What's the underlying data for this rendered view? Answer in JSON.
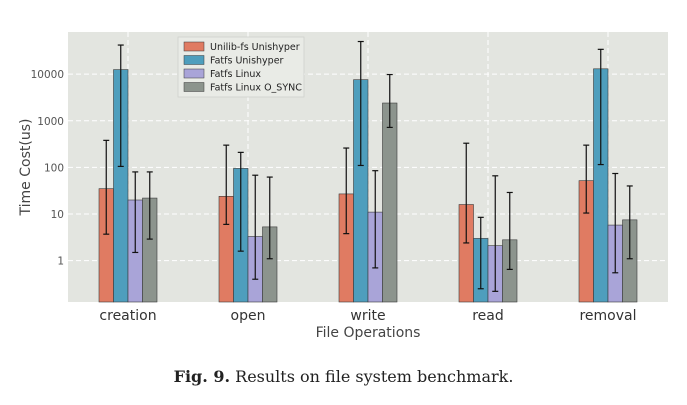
{
  "caption": {
    "label": "Fig. 9.",
    "text": "Results on file system benchmark."
  },
  "chart_data": {
    "type": "bar",
    "title": "",
    "xlabel": "File Operations",
    "ylabel": "Time Cost(us)",
    "yscale": "log",
    "ylim": [
      0.13,
      80000
    ],
    "ytick_values": [
      1,
      10,
      100,
      1000,
      10000
    ],
    "ytick_labels": [
      "1",
      "10",
      "100",
      "1000",
      "10000"
    ],
    "grid": true,
    "legend_position": "top-left",
    "categories": [
      "creation",
      "open",
      "write",
      "read",
      "removal"
    ],
    "series": [
      {
        "name": "Unilib-fs Unishyper",
        "color": "#e07b62",
        "values": [
          35,
          24,
          27,
          16,
          52
        ],
        "err_low": [
          3.7,
          6,
          3.8,
          2.4,
          10.5
        ],
        "err_high": [
          380,
          300,
          260,
          330,
          300
        ]
      },
      {
        "name": "Fatfs Unishyper",
        "color": "#4e9ebd",
        "values": [
          12500,
          95,
          7600,
          3,
          13000
        ],
        "err_low": [
          105,
          1.6,
          110,
          0.25,
          115
        ],
        "err_high": [
          42000,
          210,
          50000,
          8.5,
          34000
        ]
      },
      {
        "name": "Fatfs Linux",
        "color": "#a9a4d8",
        "values": [
          20,
          3.3,
          11,
          2.1,
          5.8
        ],
        "err_low": [
          1.5,
          0.4,
          0.7,
          0.22,
          0.55
        ],
        "err_high": [
          80,
          68,
          85,
          66,
          74
        ]
      },
      {
        "name": "Fatfs Linux O_SYNC",
        "color": "#8c948d",
        "values": [
          22,
          5.3,
          2400,
          2.8,
          7.5
        ],
        "err_low": [
          2.9,
          1.1,
          720,
          0.65,
          1.1
        ],
        "err_high": [
          80,
          62,
          9800,
          29,
          40
        ]
      }
    ]
  }
}
